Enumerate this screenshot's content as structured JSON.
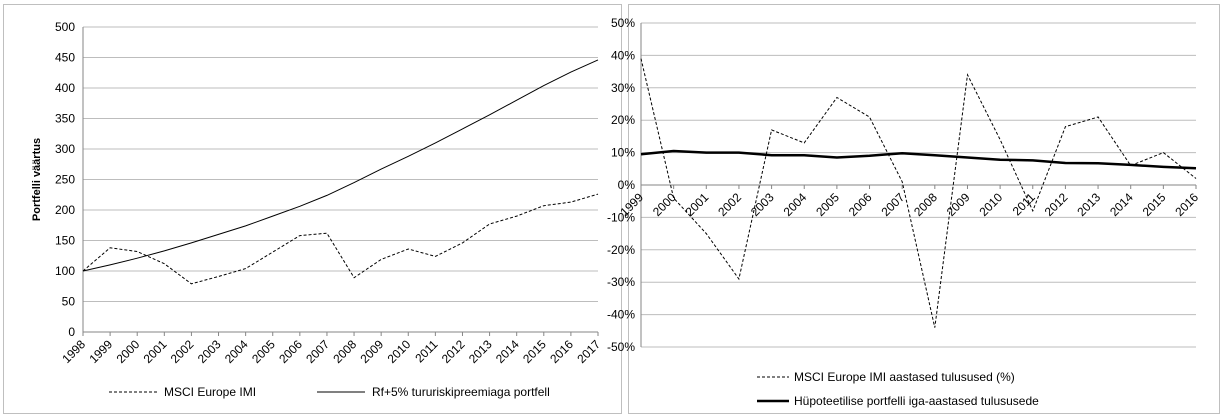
{
  "chart_data": [
    {
      "type": "line",
      "title": "",
      "xlabel": "",
      "ylabel": "Portfelli väärtus",
      "ylim": [
        0,
        500
      ],
      "yticks": [
        0,
        50,
        100,
        150,
        200,
        250,
        300,
        350,
        400,
        450,
        500
      ],
      "x": [
        "1998",
        "1999",
        "2000",
        "2001",
        "2002",
        "2003",
        "2004",
        "2005",
        "2006",
        "2007",
        "2008",
        "2009",
        "2010",
        "2011",
        "2012",
        "2013",
        "2014",
        "2015",
        "2016",
        "2017"
      ],
      "grid": "horizontal",
      "legend": "bottom",
      "series": [
        {
          "name": "MSCI Europe IMI",
          "style": "dashed",
          "values": [
            100,
            138,
            132,
            112,
            79,
            91,
            104,
            131,
            158,
            162,
            89,
            119,
            136,
            124,
            146,
            177,
            190,
            207,
            213,
            226
          ]
        },
        {
          "name": "Rf+5% tururiskipreemiaga portfell",
          "style": "solid",
          "values": [
            100,
            110,
            121,
            133,
            146,
            160,
            174,
            190,
            206,
            224,
            245,
            267,
            288,
            310,
            333,
            356,
            380,
            404,
            426,
            446
          ]
        }
      ]
    },
    {
      "type": "line",
      "title": "",
      "xlabel": "",
      "ylabel": "",
      "ylim": [
        -50,
        50
      ],
      "yticks": [
        "-50%",
        "-40%",
        "-30%",
        "-20%",
        "-10%",
        "0%",
        "10%",
        "20%",
        "30%",
        "40%",
        "50%"
      ],
      "x": [
        "1999",
        "2000",
        "2001",
        "2002",
        "2003",
        "2004",
        "2005",
        "2006",
        "2007",
        "2008",
        "2009",
        "2010",
        "2011",
        "2012",
        "2013",
        "2014",
        "2015",
        "2016"
      ],
      "grid": "horizontal",
      "legend": "bottom",
      "series": [
        {
          "name": "MSCI Europe IMI aastased tulusused (%)",
          "style": "dashed",
          "values": [
            39,
            -4,
            -15,
            -29,
            17,
            13,
            27,
            21,
            1,
            -44,
            34,
            14,
            -8,
            18,
            21,
            6,
            10,
            2
          ]
        },
        {
          "name": "Hüpoteetilise portfelli iga-aastased tulususede",
          "style": "thick",
          "values": [
            9.5,
            10.5,
            10,
            10,
            9.2,
            9.2,
            8.5,
            9,
            9.8,
            9.2,
            8.5,
            7.8,
            7.6,
            6.8,
            6.7,
            6.2,
            5.6,
            5.2
          ]
        }
      ]
    }
  ]
}
